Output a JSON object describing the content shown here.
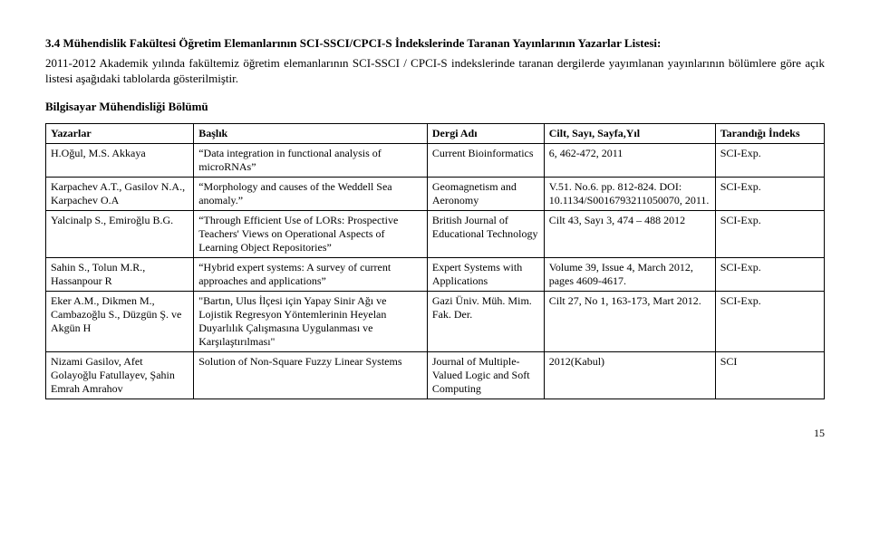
{
  "heading": "3.4 Mühendislik Fakültesi Öğretim Elemanlarının SCI-SSCI/CPCI-S İndekslerinde Taranan Yayınlarının Yazarlar Listesi:",
  "paragraph": "2011-2012 Akademik yılında fakültemiz öğretim elemanlarının SCI-SSCI / CPCI-S indekslerinde taranan dergilerde yayımlanan yayınlarının bölümlere göre açık listesi aşağıdaki tablolarda gösterilmiştir.",
  "subheading": "Bilgisayar Mühendisliği Bölümü",
  "columns": [
    "Yazarlar",
    "Başlık",
    "Dergi Adı",
    "Cilt, Sayı, Sayfa,Yıl",
    "Tarandığı İndeks"
  ],
  "rows": [
    {
      "authors": "H.Oğul, M.S. Akkaya",
      "title": "“Data integration in functional analysis of microRNAs”",
      "journal": "Current Bioinformatics",
      "vol": "6, 462-472, 2011",
      "index": "SCI-Exp."
    },
    {
      "authors": "Karpachev A.T., Gasilov N.A., Karpachev O.A",
      "title": "“Morphology and causes of the Weddell Sea anomaly.”",
      "journal": "Geomagnetism and Aeronomy",
      "vol": "V.51. No.6. pp. 812-824. DOI: 10.1134/S0016793211050070, 2011.",
      "index": "SCI-Exp."
    },
    {
      "authors": "Yalcinalp S., Emiroğlu B.G.",
      "title": "“Through Efficient Use of LORs: Prospective Teachers' Views on Operational Aspects of Learning Object Repositories”",
      "journal": "British Journal of Educational Technology",
      "vol": "Cilt 43, Sayı 3, 474 – 488 2012",
      "index": "SCI-Exp."
    },
    {
      "authors": "Sahin S., Tolun M.R., Hassanpour R",
      "title": "“Hybrid expert systems: A survey of current approaches and applications”",
      "journal": "Expert Systems with Applications",
      "vol": "Volume 39, Issue 4, March 2012, pages 4609-4617.",
      "index": "SCI-Exp."
    },
    {
      "authors": "Eker A.M., Dikmen M., Cambazoğlu S., Düzgün Ş. ve Akgün H",
      "title": "\"Bartın, Ulus İlçesi için Yapay Sinir Ağı ve Lojistik Regresyon Yöntemlerinin Heyelan Duyarlılık Çalışmasına Uygulanması ve Karşılaştırılması\"",
      "journal": "Gazi Üniv. Müh. Mim. Fak. Der.",
      "vol": "Cilt 27, No 1, 163-173, Mart 2012.",
      "index": "SCI-Exp."
    },
    {
      "authors": "Nizami Gasilov, Afet Golayoğlu Fatullayev, Şahin Emrah Amrahov",
      "title": "Solution of Non-Square Fuzzy Linear Systems",
      "journal": "Journal of Multiple-Valued Logic and Soft Computing",
      "vol": "2012(Kabul)",
      "index": "SCI"
    }
  ],
  "page_number": "15"
}
